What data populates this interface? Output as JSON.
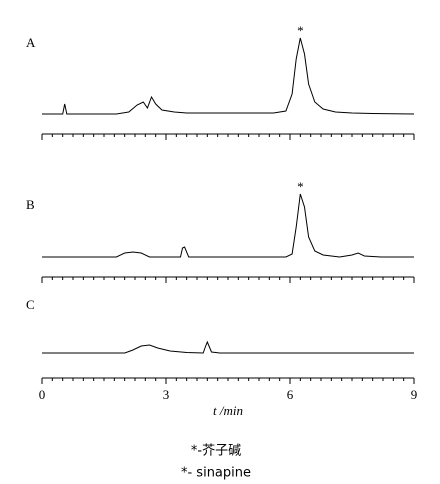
{
  "chart_data": [
    {
      "type": "line",
      "label": "A",
      "color": "#000000",
      "xlim": [
        0,
        9
      ],
      "ylim": [
        0,
        80
      ],
      "x": [
        0,
        0.5,
        0.55,
        0.6,
        1.8,
        2.1,
        2.3,
        2.45,
        2.55,
        2.65,
        2.75,
        2.9,
        3.2,
        3.5,
        5.6,
        5.9,
        6.05,
        6.15,
        6.25,
        6.35,
        6.45,
        6.6,
        6.8,
        7.1,
        7.5,
        8,
        9
      ],
      "values": [
        0,
        0,
        10,
        0,
        0,
        2,
        9,
        12,
        6,
        17,
        10,
        4,
        2,
        1,
        1,
        3,
        20,
        55,
        76,
        60,
        30,
        12,
        5,
        2,
        1,
        0.5,
        0
      ],
      "annotations": [
        {
          "text": "*",
          "x": 6.25
        }
      ]
    },
    {
      "type": "line",
      "label": "B",
      "color": "#000000",
      "xlim": [
        0,
        9
      ],
      "ylim": [
        0,
        80
      ],
      "x": [
        0,
        1.8,
        2.0,
        2.2,
        2.4,
        2.6,
        3.35,
        3.4,
        3.45,
        3.55,
        5.9,
        6.05,
        6.15,
        6.25,
        6.35,
        6.45,
        6.6,
        6.8,
        7.2,
        7.5,
        7.65,
        7.8,
        8.2,
        9
      ],
      "values": [
        0,
        0,
        4,
        5,
        4,
        0,
        0,
        9,
        10,
        0,
        0,
        3,
        30,
        63,
        50,
        20,
        6,
        2,
        0,
        2,
        4,
        1,
        0,
        0
      ],
      "annotations": [
        {
          "text": "*",
          "x": 6.25
        }
      ]
    },
    {
      "type": "line",
      "label": "C",
      "color": "#000000",
      "xlim": [
        0,
        9
      ],
      "ylim": [
        0,
        80
      ],
      "x": [
        0,
        2.0,
        2.2,
        2.4,
        2.6,
        2.8,
        3.1,
        3.5,
        3.9,
        3.95,
        4.0,
        4.05,
        4.1,
        4.3,
        9
      ],
      "values": [
        0,
        0,
        3,
        7,
        8,
        5,
        2,
        0.5,
        0,
        6,
        11,
        6,
        1,
        0,
        0
      ],
      "xlabel": "t /min",
      "xticks": [
        0,
        3,
        6,
        9
      ],
      "xminorticks": [
        0.25,
        0.5,
        0.75,
        1,
        1.25,
        1.5,
        1.75,
        2,
        2.25,
        2.5,
        2.75,
        3.25,
        3.5,
        3.75,
        4,
        4.25,
        4.5,
        4.75,
        5,
        5.25,
        5.5,
        5.75,
        6.25,
        6.5,
        6.75,
        7,
        7.25,
        7.5,
        7.75,
        8,
        8.25,
        8.5,
        8.75
      ]
    }
  ],
  "notes": [
    "*-芥子碱",
    "*- sinapine"
  ]
}
